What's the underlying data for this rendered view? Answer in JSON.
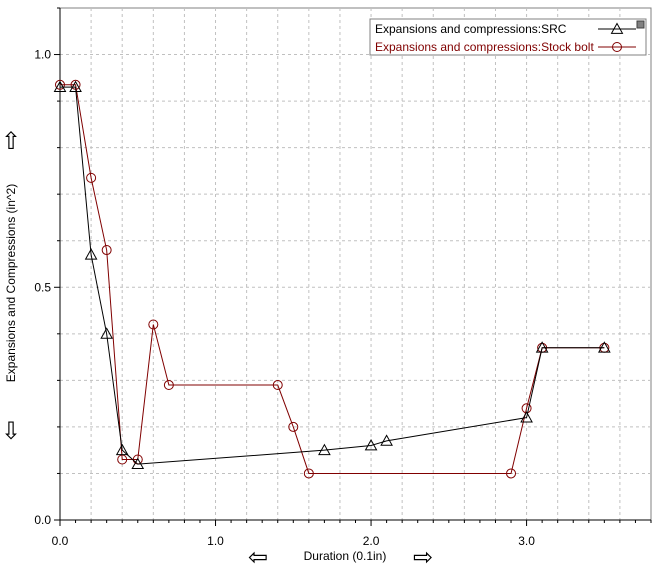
{
  "chart_data": {
    "type": "line",
    "title": "",
    "xlabel": "Duration (0.1in)",
    "ylabel": "Expansions and Compressions (in^2)",
    "xlim": [
      0,
      3.8
    ],
    "ylim": [
      0,
      1.1
    ],
    "x_ticks": [
      {
        "value": 0.0,
        "label": "0.0"
      },
      {
        "value": 1.0,
        "label": "1.0"
      },
      {
        "value": 2.0,
        "label": "2.0"
      },
      {
        "value": 3.0,
        "label": "3.0"
      }
    ],
    "y_ticks": [
      {
        "value": 0.0,
        "label": "0.0"
      },
      {
        "value": 0.5,
        "label": "0.5"
      },
      {
        "value": 1.0,
        "label": "1.0"
      }
    ],
    "grid": true,
    "legend": "top-right",
    "series": [
      {
        "name": "Expansions and compressions:SRC",
        "color": "#000000",
        "marker": "triangle",
        "x": [
          0.0,
          0.1,
          0.2,
          0.3,
          0.4,
          0.5,
          1.7,
          2.0,
          2.1,
          3.0,
          3.1,
          3.5
        ],
        "y": [
          0.93,
          0.93,
          0.57,
          0.4,
          0.15,
          0.12,
          0.15,
          0.16,
          0.17,
          0.22,
          0.37,
          0.37
        ]
      },
      {
        "name": "Expansions and compressions:Stock bolt",
        "color": "#800000",
        "marker": "circle",
        "x": [
          0.0,
          0.1,
          0.2,
          0.3,
          0.4,
          0.5,
          0.6,
          0.7,
          1.4,
          1.5,
          1.6,
          2.9,
          3.0,
          3.1,
          3.5
        ],
        "y": [
          0.935,
          0.935,
          0.735,
          0.58,
          0.13,
          0.13,
          0.42,
          0.29,
          0.29,
          0.2,
          0.1,
          0.1,
          0.24,
          0.37,
          0.37
        ]
      }
    ]
  },
  "controls": {
    "y_up_arrow": "⇧",
    "y_down_arrow": "⇩",
    "x_left_arrow": "⇦",
    "x_right_arrow": "⇨"
  }
}
